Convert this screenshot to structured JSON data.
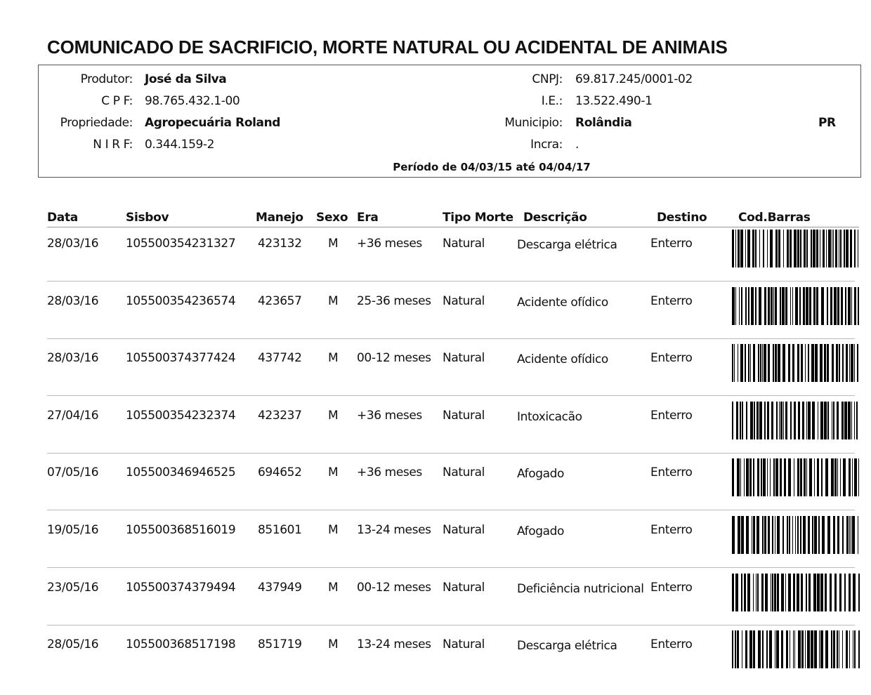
{
  "title": "COMUNICADO DE SACRIFICIO, MORTE NATURAL OU ACIDENTAL DE ANIMAIS",
  "header": {
    "produtor_label": "Produtor:",
    "produtor": "José da Silva",
    "cpf_label": "C P F:",
    "cpf": "98.765.432.1-00",
    "propriedade_label": "Propriedade:",
    "propriedade": "Agropecuária Roland",
    "nirf_label": "N I R F:",
    "nirf": "0.344.159-2",
    "cnpj_label": "CNPJ:",
    "cnpj": "69.817.245/0001-02",
    "ie_label": "I.E.:",
    "ie": "13.522.490-1",
    "municipio_label": "Municipio:",
    "municipio": "Rolândia",
    "uf": "PR",
    "incra_label": "Incra:",
    "incra": ".",
    "periodo": "Período de 04/03/15 até 04/04/17"
  },
  "columns": [
    "Data",
    "Sisbov",
    "Manejo",
    "Sexo",
    "Era",
    "Tipo Morte",
    "Descrição",
    "Destino",
    "Cod.Barras"
  ],
  "rows": [
    {
      "data": "28/03/16",
      "sisbov": "105500354231327",
      "manejo": "423132",
      "sexo": "M",
      "era": "+36 meses",
      "tipo": "Natural",
      "descricao": "Descarga elétrica",
      "destino": "Enterro"
    },
    {
      "data": "28/03/16",
      "sisbov": "105500354236574",
      "manejo": "423657",
      "sexo": "M",
      "era": "25-36 meses",
      "tipo": "Natural",
      "descricao": "Acidente ofídico",
      "destino": "Enterro"
    },
    {
      "data": "28/03/16",
      "sisbov": "105500374377424",
      "manejo": "437742",
      "sexo": "M",
      "era": "00-12 meses",
      "tipo": "Natural",
      "descricao": "Acidente ofídico",
      "destino": "Enterro"
    },
    {
      "data": "27/04/16",
      "sisbov": "105500354232374",
      "manejo": "423237",
      "sexo": "M",
      "era": "+36 meses",
      "tipo": "Natural",
      "descricao": "Intoxicacão",
      "destino": "Enterro"
    },
    {
      "data": "07/05/16",
      "sisbov": "105500346946525",
      "manejo": "694652",
      "sexo": "M",
      "era": "+36 meses",
      "tipo": "Natural",
      "descricao": "Afogado",
      "destino": "Enterro"
    },
    {
      "data": "19/05/16",
      "sisbov": "105500368516019",
      "manejo": "851601",
      "sexo": "M",
      "era": "13-24 meses",
      "tipo": "Natural",
      "descricao": "Afogado",
      "destino": "Enterro"
    },
    {
      "data": "23/05/16",
      "sisbov": "105500374379494",
      "manejo": "437949",
      "sexo": "M",
      "era": "00-12 meses",
      "tipo": "Natural",
      "descricao": "Deficiência nutricional",
      "destino": "Enterro"
    },
    {
      "data": "28/05/16",
      "sisbov": "105500368517198",
      "manejo": "851719",
      "sexo": "M",
      "era": "13-24 meses",
      "tipo": "Natural",
      "descricao": "Descarga elétrica",
      "destino": "Enterro"
    }
  ]
}
